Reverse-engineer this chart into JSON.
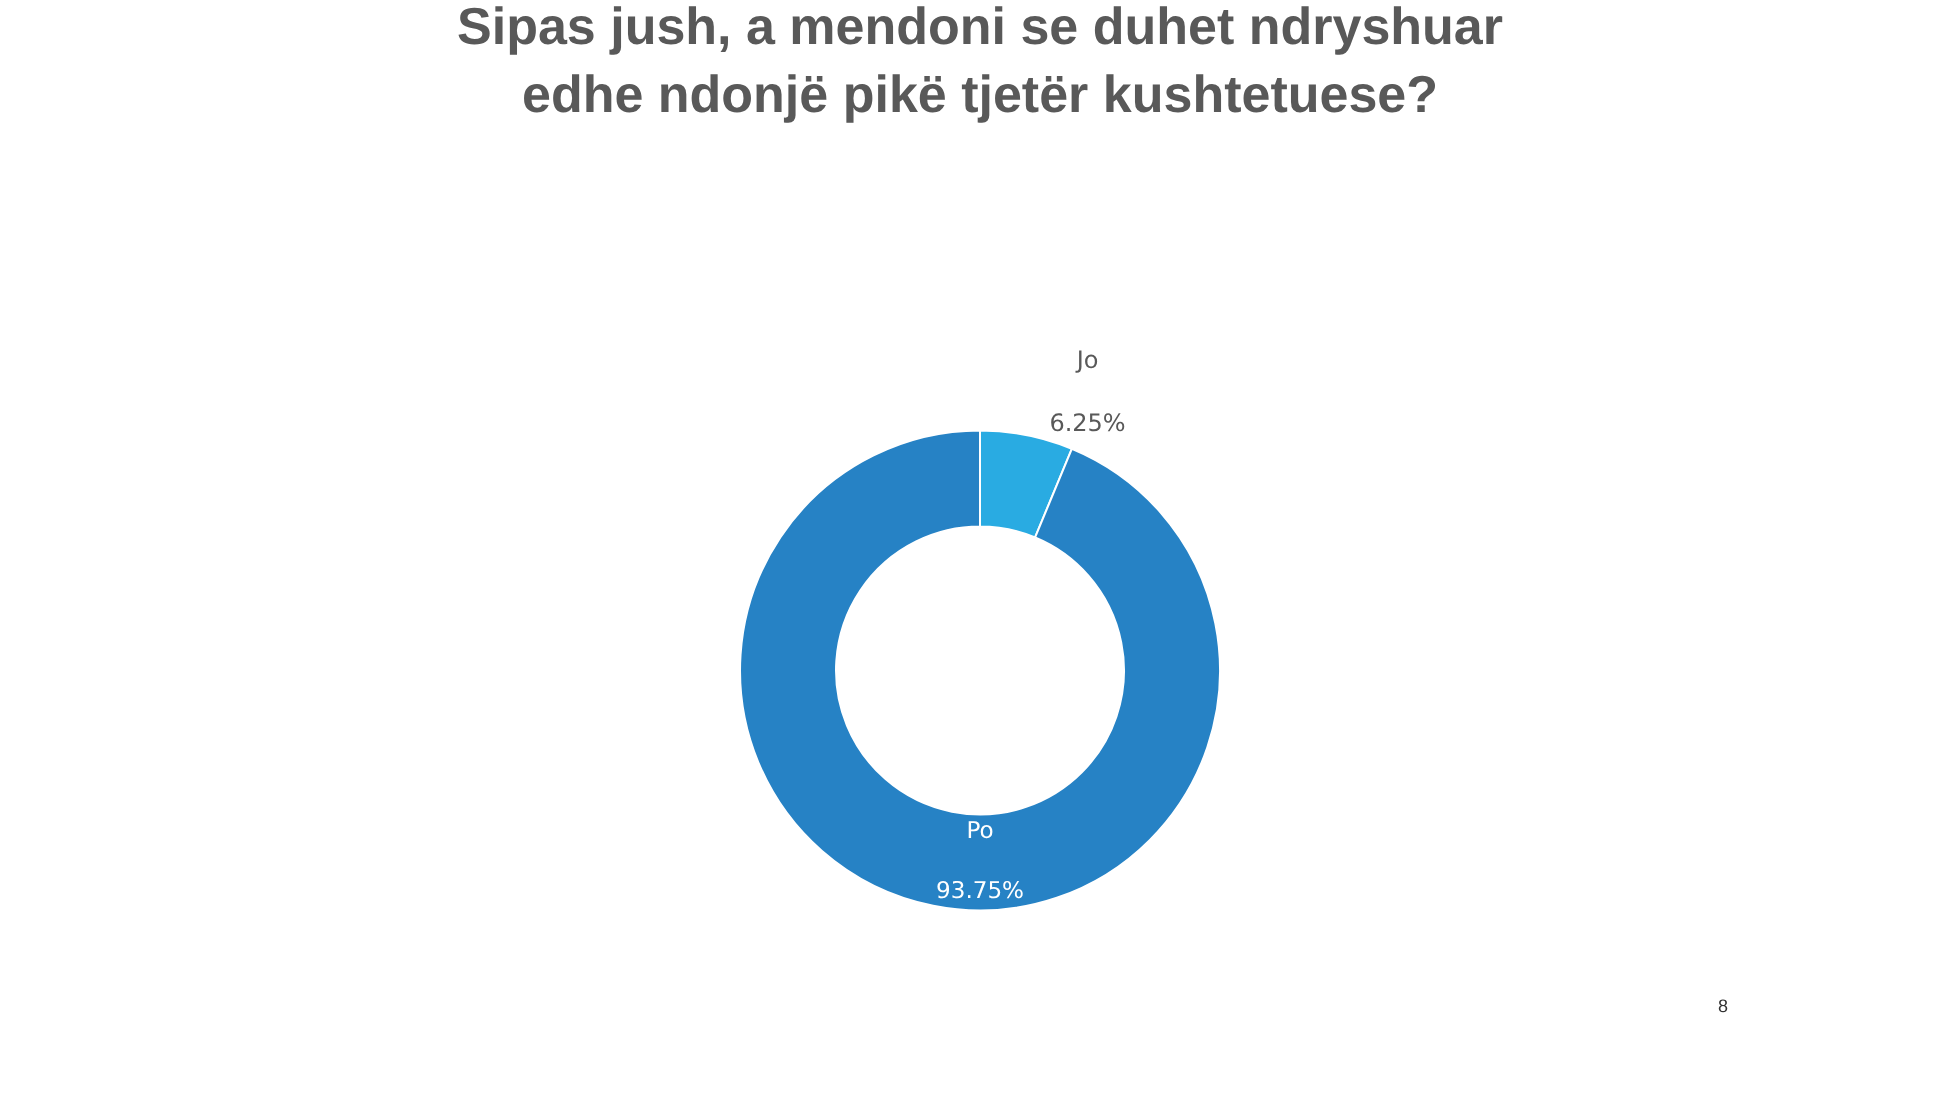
{
  "chart_data": {
    "type": "donut",
    "title": "Sipas jush, a mendoni se duhet ndryshuar edhe ndonjë pikë tjetër kushtetuese?",
    "categories": [
      "Jo",
      "Po"
    ],
    "values": [
      6.25,
      93.75
    ],
    "colors": [
      "#29abe2",
      "#2682c5"
    ],
    "value_labels": [
      "6.25%",
      "93.75%"
    ],
    "legend": false,
    "annotations": [
      "8"
    ]
  }
}
